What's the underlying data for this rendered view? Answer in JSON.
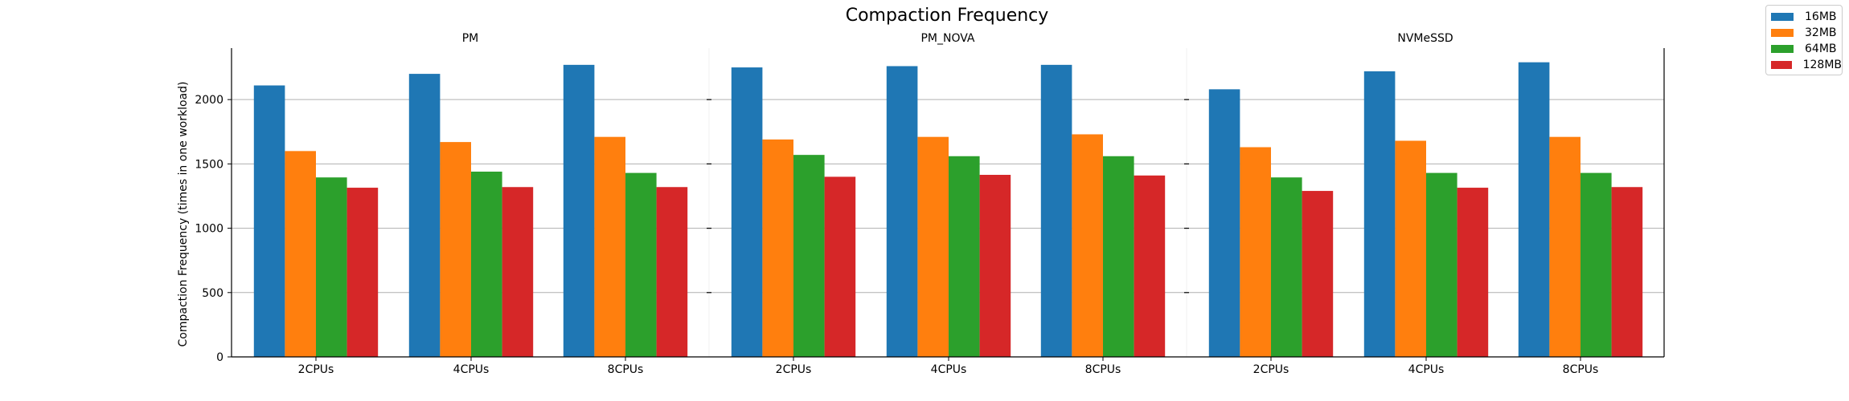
{
  "chart_data": {
    "type": "bar",
    "title": "Compaction Frequency",
    "ylabel": "Compaction Frequency (times in one workload)",
    "xlabel": "",
    "ylim": [
      0,
      2400
    ],
    "yticks": [
      0,
      500,
      1000,
      1500,
      2000
    ],
    "grid": true,
    "legend_position": "top-right",
    "groups": [
      "PM",
      "PM_NOVA",
      "NVMeSSD"
    ],
    "categories": [
      "2CPUs",
      "4CPUs",
      "8CPUs"
    ],
    "series": [
      {
        "name": "16MB",
        "color": "#1f77b4",
        "values": [
          [
            2110,
            2200,
            2270
          ],
          [
            2250,
            2260,
            2270
          ],
          [
            2080,
            2220,
            2290
          ]
        ]
      },
      {
        "name": "32MB",
        "color": "#ff7f0e",
        "values": [
          [
            1600,
            1670,
            1710
          ],
          [
            1690,
            1710,
            1730
          ],
          [
            1630,
            1680,
            1710
          ]
        ]
      },
      {
        "name": "64MB",
        "color": "#2ca02c",
        "values": [
          [
            1395,
            1440,
            1430
          ],
          [
            1570,
            1560,
            1560
          ],
          [
            1395,
            1430,
            1430
          ]
        ]
      },
      {
        "name": "128MB",
        "color": "#d62728",
        "values": [
          [
            1315,
            1320,
            1320
          ],
          [
            1400,
            1415,
            1410
          ],
          [
            1290,
            1315,
            1320
          ]
        ]
      }
    ]
  }
}
